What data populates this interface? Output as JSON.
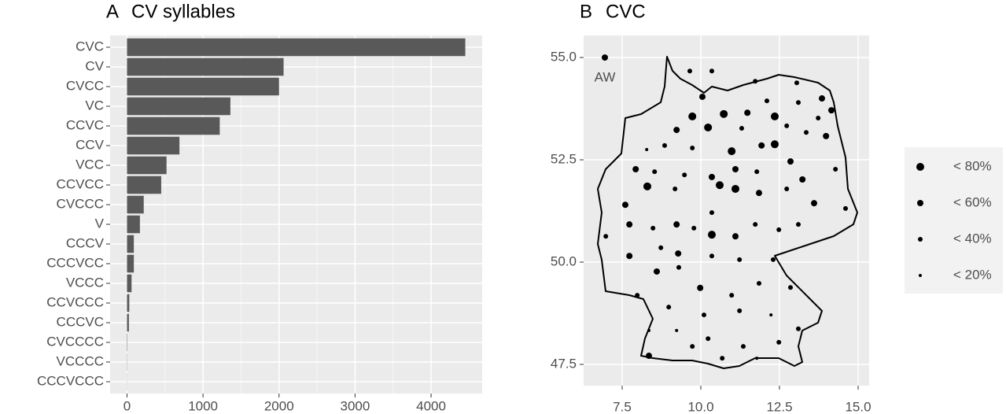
{
  "chart_data": [
    {
      "type": "bar",
      "orientation": "horizontal",
      "tag": "A",
      "title": "CV syllables",
      "categories": [
        "CVC",
        "CV",
        "CVCC",
        "VC",
        "CCVC",
        "CCV",
        "VCC",
        "CCVCC",
        "CVCCC",
        "V",
        "CCCV",
        "CCCVCC",
        "VCCC",
        "CCVCCC",
        "CCCVC",
        "CVCCCC",
        "VCCCC",
        "CCCVCCC"
      ],
      "values": [
        4450,
        2060,
        2000,
        1360,
        1220,
        690,
        520,
        450,
        220,
        170,
        90,
        90,
        60,
        30,
        25,
        5,
        3,
        2
      ],
      "color": "#595959",
      "xlim": [
        -222,
        4672
      ],
      "xticks": [
        0,
        1000,
        2000,
        3000,
        4000
      ],
      "grid": true
    },
    {
      "type": "scatter",
      "tag": "B",
      "title": "CVC",
      "annotation": "AW",
      "color": "#000000",
      "x": [
        6.95,
        9.65,
        10.35,
        11.73,
        13.05,
        13.85,
        14.15,
        13.1,
        12.1,
        10.05,
        9.73,
        10.73,
        11.48,
        12.35,
        13.73,
        9.23,
        10.23,
        11.3,
        12.73,
        13.35,
        8.28,
        8.85,
        9.73,
        10.98,
        11.93,
        12.35,
        12.85,
        13.98,
        7.93,
        8.53,
        9.48,
        10.35,
        11.1,
        11.78,
        13.23,
        14.28,
        7.6,
        8.3,
        9.18,
        10.6,
        11.1,
        11.85,
        12.73,
        13.6,
        14.6,
        7.73,
        8.48,
        9.23,
        9.78,
        10.35,
        10.35,
        11.1,
        11.73,
        12.48,
        13.1,
        6.98,
        7.73,
        8.73,
        9.28,
        10.35,
        11.23,
        12.3,
        8.6,
        9.3,
        9.98,
        10.98,
        11.85,
        12.85,
        7.98,
        8.98,
        10.1,
        11.23,
        12.23,
        13.1,
        8.35,
        9.23,
        10.23,
        11.35,
        12.48,
        8.35,
        9.73,
        10.68,
        11.78
      ],
      "y": [
        55.0,
        54.67,
        54.67,
        54.42,
        54.38,
        54.0,
        53.71,
        53.9,
        53.94,
        54.04,
        53.56,
        53.62,
        53.65,
        53.56,
        53.52,
        53.23,
        53.29,
        53.27,
        53.33,
        53.17,
        52.75,
        52.85,
        52.79,
        52.71,
        52.85,
        52.88,
        52.46,
        53.08,
        52.27,
        52.21,
        52.13,
        52.08,
        52.27,
        52.21,
        52.02,
        52.27,
        51.4,
        51.85,
        51.79,
        51.88,
        51.79,
        51.69,
        51.79,
        51.44,
        51.31,
        50.92,
        50.83,
        50.92,
        50.83,
        51.21,
        50.67,
        50.63,
        50.92,
        50.79,
        50.92,
        50.63,
        50.15,
        50.35,
        50.21,
        50.15,
        50.06,
        50.06,
        49.77,
        49.87,
        49.37,
        49.19,
        49.48,
        49.38,
        49.19,
        48.9,
        48.71,
        48.81,
        48.71,
        48.37,
        48.33,
        48.33,
        48.13,
        47.94,
        48.04,
        47.71,
        47.94,
        47.65,
        47.65
      ],
      "sizes": [
        60,
        40,
        40,
        40,
        40,
        60,
        60,
        40,
        40,
        60,
        80,
        80,
        60,
        80,
        40,
        60,
        80,
        40,
        40,
        40,
        20,
        40,
        40,
        80,
        60,
        80,
        60,
        60,
        60,
        40,
        40,
        60,
        60,
        40,
        60,
        40,
        60,
        80,
        40,
        80,
        80,
        60,
        40,
        60,
        40,
        60,
        40,
        60,
        40,
        40,
        80,
        60,
        40,
        40,
        40,
        40,
        60,
        40,
        60,
        40,
        40,
        40,
        60,
        40,
        60,
        40,
        40,
        40,
        40,
        40,
        40,
        40,
        20,
        40,
        20,
        20,
        40,
        40,
        40,
        60,
        40,
        40,
        20
      ],
      "size_legend": [
        {
          "value": 80,
          "label": "< 80%"
        },
        {
          "value": 60,
          "label": "< 60%"
        },
        {
          "value": 40,
          "label": "< 40%"
        },
        {
          "value": 20,
          "label": "< 20%"
        }
      ],
      "xlim": [
        6.275,
        15.35
      ],
      "ylim": [
        46.98,
        55.54
      ],
      "xticks": [
        7.5,
        {
          "value": 10,
          "label": "10.0"
        },
        12.5,
        {
          "value": 15,
          "label": "15.0"
        }
      ],
      "yticks": [
        47.5,
        {
          "value": 50,
          "label": "50.0"
        },
        52.5,
        {
          "value": 55,
          "label": "55.0"
        }
      ],
      "grid": true
    }
  ]
}
